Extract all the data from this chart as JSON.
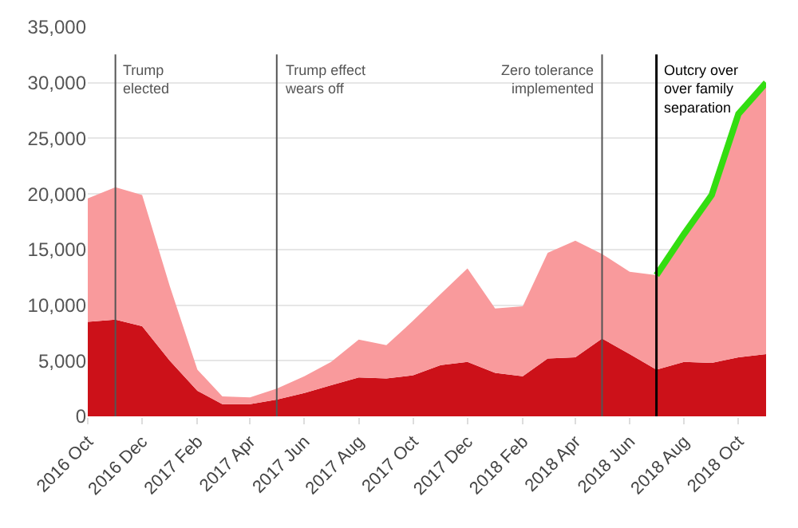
{
  "chart_data": {
    "type": "area",
    "stacked": true,
    "x": [
      "2016-10",
      "2016-11",
      "2016-12",
      "2017-01",
      "2017-02",
      "2017-03",
      "2017-04",
      "2017-05",
      "2017-06",
      "2017-07",
      "2017-08",
      "2017-09",
      "2017-10",
      "2017-11",
      "2017-12",
      "2018-01",
      "2018-02",
      "2018-03",
      "2018-04",
      "2018-05",
      "2018-06",
      "2018-07",
      "2018-08",
      "2018-09",
      "2018-10",
      "2018-11"
    ],
    "series": [
      {
        "color": "#cc1119",
        "values": [
          8500,
          8700,
          8100,
          5000,
          2300,
          1100,
          1100,
          1500,
          2100,
          2800,
          3500,
          3400,
          3700,
          4600,
          4900,
          3900,
          3600,
          5200,
          5300,
          7000,
          5600,
          4200,
          4900,
          4800,
          5300,
          5600
        ]
      },
      {
        "color": "#f99a9c",
        "values": [
          11100,
          11900,
          11800,
          6700,
          1900,
          700,
          600,
          1000,
          1500,
          2100,
          3400,
          3000,
          4900,
          6400,
          8400,
          5800,
          6300,
          9500,
          10500,
          7600,
          7400,
          8500,
          11500,
          15100,
          21900,
          24400
        ]
      },
      {
        "type": "line",
        "color": "#33dd11",
        "x": [
          "2018-07",
          "2018-08",
          "2018-09",
          "2018-10",
          "2018-11"
        ],
        "values": [
          12700,
          16400,
          19900,
          27200,
          30000
        ]
      }
    ],
    "xlim": [
      "2016-10",
      "2018-11"
    ],
    "xticks": [
      {
        "value": "2016-10",
        "label": "2016 Oct"
      },
      {
        "value": "2016-12",
        "label": "2016 Dec"
      },
      {
        "value": "2017-02",
        "label": "2017 Feb"
      },
      {
        "value": "2017-04",
        "label": "2017 Apr"
      },
      {
        "value": "2017-06",
        "label": "2017 Jun"
      },
      {
        "value": "2017-08",
        "label": "2017 Aug"
      },
      {
        "value": "2017-10",
        "label": "2017 Oct"
      },
      {
        "value": "2017-12",
        "label": "2017 Dec"
      },
      {
        "value": "2018-02",
        "label": "2018 Feb"
      },
      {
        "value": "2018-04",
        "label": "2018 Apr"
      },
      {
        "value": "2018-06",
        "label": "2018 Jun"
      },
      {
        "value": "2018-08",
        "label": "2018 Aug"
      },
      {
        "value": "2018-10",
        "label": "2018 Oct"
      }
    ],
    "ylim": [
      0,
      35000
    ],
    "yticks": [
      0,
      {
        "value": 5000,
        "label": "5,000"
      },
      {
        "value": 10000,
        "label": "10,000"
      },
      {
        "value": 15000,
        "label": "15,000"
      },
      {
        "value": 20000,
        "label": "20,000"
      },
      {
        "value": 25000,
        "label": "25,000"
      },
      {
        "value": 30000,
        "label": "30,000"
      },
      {
        "value": 35000,
        "label": "35,000"
      }
    ],
    "ref_lines": [
      {
        "axis": "x",
        "value": "2016-11",
        "label": "Trump\nelected",
        "color": "#555555"
      },
      {
        "axis": "x",
        "value": "2017-05",
        "label": "Trump effect\nwears off",
        "color": "#555555"
      },
      {
        "axis": "x",
        "value": "2018-05",
        "label": "Zero tolerance\nimplemented",
        "color": "#555555"
      },
      {
        "axis": "x",
        "value": "2018-07",
        "label": "Outcry over\nover family\nseparation",
        "color": "#000000"
      }
    ],
    "grid": "y"
  }
}
